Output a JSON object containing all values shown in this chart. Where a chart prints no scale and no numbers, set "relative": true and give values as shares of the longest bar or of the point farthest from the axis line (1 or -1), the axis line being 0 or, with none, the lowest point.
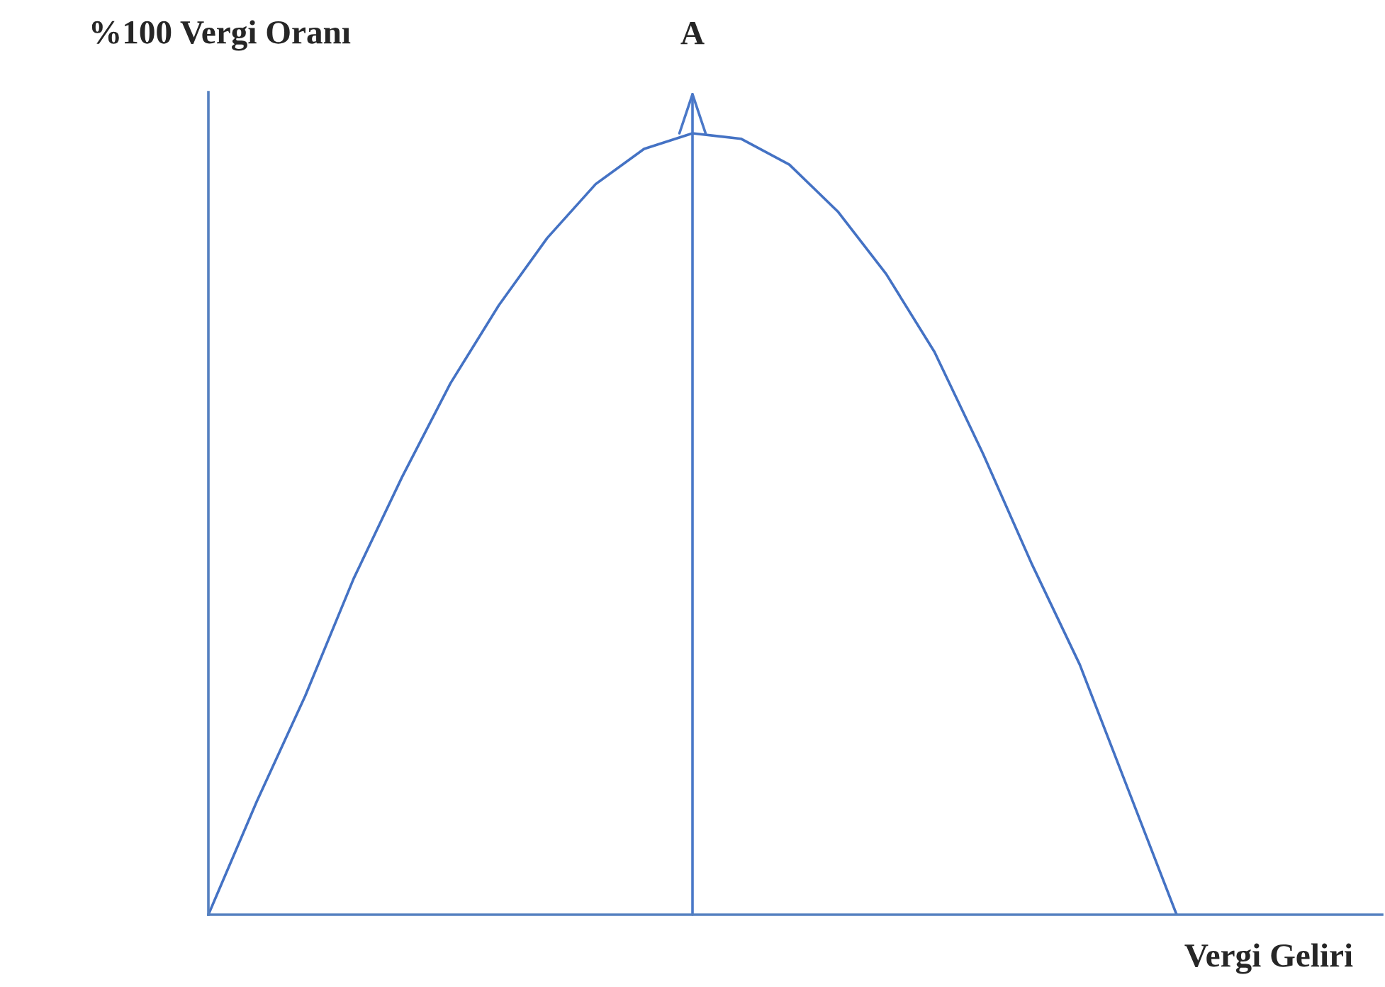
{
  "chart_data": {
    "type": "line",
    "relative": true,
    "ylabel": "%100 Vergi Oranı",
    "xlabel": "Vergi Geliri",
    "categories": [
      null,
      null,
      null,
      null,
      null,
      null,
      null,
      null,
      null,
      null,
      null,
      null,
      null,
      null,
      null,
      null,
      null,
      null,
      null,
      null,
      null
    ],
    "series": [
      {
        "color": "#4472c4",
        "values": [
          0,
          0.145,
          0.28,
          0.43,
          0.56,
          0.68,
          0.78,
          0.866,
          0.935,
          0.98,
          1.0,
          0.993,
          0.96,
          0.9,
          0.82,
          0.72,
          0.59,
          0.45,
          0.32,
          0.16,
          0
        ]
      }
    ],
    "annotations": [
      "A"
    ],
    "marker": "none",
    "line_style": "solid"
  }
}
